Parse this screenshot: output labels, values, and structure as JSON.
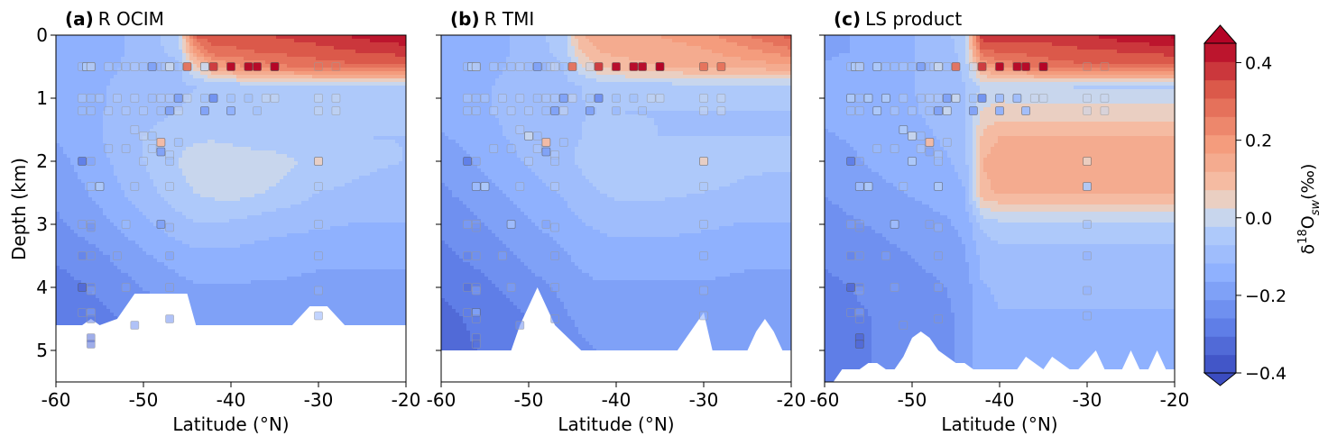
{
  "chart_data": [
    {
      "type": "heatmap",
      "panel_letter": "(a)",
      "title": "R OCIM",
      "xlabel": "Latitude (°N)",
      "ylabel": "Depth (km)",
      "xlim": [
        -60,
        -20
      ],
      "ylim": [
        5.5,
        0
      ],
      "xticks": [
        "-60",
        "-50",
        "-40",
        "-30",
        "-20"
      ],
      "yticks": [
        "0",
        "1",
        "2",
        "3",
        "4",
        "5"
      ],
      "field": {
        "lat": [
          -60,
          -55,
          -50,
          -46,
          -44,
          -42,
          -40,
          -35,
          -30,
          -25,
          -20
        ],
        "depth": [
          0,
          0.25,
          0.5,
          0.8,
          1.2,
          1.6,
          2.0,
          2.5,
          3.0,
          3.5,
          4.0,
          4.5,
          5.0,
          5.5
        ],
        "values": [
          [
            -0.15,
            -0.14,
            -0.1,
            -0.03,
            0.32,
            0.33,
            0.33,
            0.36,
            0.38,
            0.42,
            0.44
          ],
          [
            -0.15,
            -0.14,
            -0.1,
            -0.05,
            0.2,
            0.3,
            0.3,
            0.32,
            0.34,
            0.36,
            0.38
          ],
          [
            -0.14,
            -0.13,
            -0.1,
            -0.08,
            0.05,
            0.15,
            0.2,
            0.25,
            0.28,
            0.3,
            0.3
          ],
          [
            -0.13,
            -0.12,
            -0.1,
            -0.08,
            -0.07,
            -0.06,
            -0.05,
            -0.03,
            -0.02,
            -0.02,
            -0.02
          ],
          [
            -0.14,
            -0.12,
            -0.09,
            -0.07,
            -0.06,
            -0.06,
            -0.06,
            -0.06,
            -0.06,
            -0.06,
            -0.06
          ],
          [
            -0.16,
            -0.12,
            -0.07,
            -0.04,
            -0.03,
            -0.03,
            -0.04,
            -0.06,
            -0.07,
            -0.07,
            -0.07
          ],
          [
            -0.18,
            -0.13,
            -0.07,
            -0.02,
            0.0,
            0.01,
            0.01,
            0.0,
            -0.04,
            -0.06,
            -0.07
          ],
          [
            -0.2,
            -0.15,
            -0.09,
            -0.04,
            -0.02,
            -0.01,
            0.0,
            -0.03,
            -0.07,
            -0.08,
            -0.09
          ],
          [
            -0.22,
            -0.18,
            -0.13,
            -0.09,
            -0.07,
            -0.07,
            -0.08,
            -0.1,
            -0.11,
            -0.12,
            -0.12
          ],
          [
            -0.25,
            -0.22,
            -0.17,
            -0.14,
            -0.13,
            -0.13,
            -0.13,
            -0.14,
            -0.15,
            -0.15,
            -0.15
          ],
          [
            -0.28,
            -0.25,
            -0.21,
            -0.18,
            -0.17,
            -0.17,
            -0.17,
            -0.17,
            -0.18,
            -0.18,
            -0.18
          ],
          [
            -0.3,
            -0.27,
            -0.24,
            -0.21,
            -0.2,
            -0.2,
            -0.2,
            -0.2,
            -0.2,
            -0.2,
            -0.2
          ],
          [
            -0.3,
            -0.28,
            -0.25,
            -0.22,
            -0.21,
            -0.21,
            -0.21,
            -0.21,
            -0.21,
            -0.21,
            -0.21
          ],
          [
            -0.3,
            -0.28,
            -0.25,
            -0.22,
            -0.21,
            -0.21,
            -0.21,
            -0.21,
            -0.21,
            -0.21,
            -0.21
          ]
        ]
      },
      "bathymetry": {
        "lat": [
          -60,
          -57,
          -56,
          -55,
          -53,
          -51,
          -45,
          -44,
          -33,
          -31,
          -29,
          -27,
          -20
        ],
        "depth": [
          4.6,
          4.6,
          4.5,
          4.6,
          4.5,
          4.1,
          4.1,
          4.6,
          4.6,
          4.3,
          4.3,
          4.6,
          4.6
        ]
      }
    },
    {
      "type": "heatmap",
      "panel_letter": "(b)",
      "title": "R TMI",
      "xlabel": "Latitude (°N)",
      "ylabel": "",
      "xlim": [
        -60,
        -20
      ],
      "ylim": [
        5.5,
        0
      ],
      "xticks": [
        "-60",
        "-50",
        "-40",
        "-30",
        "-20"
      ],
      "yticks": [
        "",
        "",
        "",
        "",
        "",
        ""
      ],
      "field": {
        "lat": [
          -60,
          -55,
          -50,
          -46,
          -44,
          -42,
          -40,
          -35,
          -30,
          -25,
          -20
        ],
        "depth": [
          0,
          0.25,
          0.5,
          0.8,
          1.2,
          1.6,
          2.0,
          2.5,
          3.0,
          3.5,
          4.0,
          4.5,
          5.0,
          5.5
        ],
        "values": [
          [
            -0.15,
            -0.14,
            -0.1,
            -0.04,
            0.12,
            0.14,
            0.15,
            0.17,
            0.2,
            0.26,
            0.33
          ],
          [
            -0.15,
            -0.14,
            -0.1,
            -0.05,
            0.08,
            0.12,
            0.13,
            0.14,
            0.16,
            0.2,
            0.25
          ],
          [
            -0.14,
            -0.13,
            -0.1,
            -0.07,
            0.02,
            0.08,
            0.1,
            0.12,
            0.13,
            0.14,
            0.15
          ],
          [
            -0.13,
            -0.12,
            -0.1,
            -0.08,
            -0.07,
            -0.06,
            -0.05,
            -0.04,
            -0.03,
            -0.03,
            -0.03
          ],
          [
            -0.14,
            -0.12,
            -0.1,
            -0.08,
            -0.07,
            -0.07,
            -0.07,
            -0.07,
            -0.07,
            -0.07,
            -0.07
          ],
          [
            -0.17,
            -0.13,
            -0.1,
            -0.08,
            -0.07,
            -0.06,
            -0.06,
            -0.07,
            -0.07,
            -0.07,
            -0.07
          ],
          [
            -0.2,
            -0.15,
            -0.11,
            -0.08,
            -0.06,
            -0.04,
            -0.02,
            -0.02,
            -0.04,
            -0.06,
            -0.06
          ],
          [
            -0.22,
            -0.18,
            -0.14,
            -0.11,
            -0.09,
            -0.07,
            -0.06,
            -0.06,
            -0.07,
            -0.08,
            -0.09
          ],
          [
            -0.25,
            -0.21,
            -0.17,
            -0.14,
            -0.12,
            -0.11,
            -0.1,
            -0.1,
            -0.11,
            -0.12,
            -0.12
          ],
          [
            -0.27,
            -0.24,
            -0.2,
            -0.17,
            -0.15,
            -0.14,
            -0.14,
            -0.14,
            -0.14,
            -0.15,
            -0.15
          ],
          [
            -0.3,
            -0.27,
            -0.23,
            -0.2,
            -0.18,
            -0.17,
            -0.17,
            -0.17,
            -0.17,
            -0.18,
            -0.18
          ],
          [
            -0.32,
            -0.29,
            -0.26,
            -0.22,
            -0.2,
            -0.19,
            -0.19,
            -0.19,
            -0.2,
            -0.2,
            -0.2
          ],
          [
            -0.33,
            -0.3,
            -0.27,
            -0.24,
            -0.22,
            -0.21,
            -0.21,
            -0.21,
            -0.21,
            -0.21,
            -0.21
          ],
          [
            -0.33,
            -0.3,
            -0.27,
            -0.24,
            -0.22,
            -0.21,
            -0.21,
            -0.21,
            -0.21,
            -0.21,
            -0.21
          ]
        ]
      },
      "bathymetry": {
        "lat": [
          -60,
          -52,
          -51,
          -49,
          -47,
          -44,
          -43,
          -33,
          -31,
          -30,
          -29,
          -25,
          -24,
          -23,
          -22,
          -21,
          -20
        ],
        "depth": [
          5.0,
          5.0,
          4.6,
          4.0,
          4.6,
          5.0,
          5.0,
          5.0,
          4.6,
          4.4,
          5.0,
          5.0,
          4.7,
          4.5,
          4.7,
          5.0,
          5.0
        ]
      }
    },
    {
      "type": "heatmap",
      "panel_letter": "(c)",
      "title": "LS product",
      "xlabel": "Latitude (°N)",
      "ylabel": "",
      "xlim": [
        -60,
        -20
      ],
      "ylim": [
        5.5,
        0
      ],
      "xticks": [
        "-60",
        "-50",
        "-40",
        "-30",
        "-20"
      ],
      "yticks": [
        "",
        "",
        "",
        "",
        "",
        ""
      ],
      "field": {
        "lat": [
          -60,
          -55,
          -50,
          -46,
          -44,
          -42,
          -40,
          -35,
          -30,
          -25,
          -20
        ],
        "depth": [
          0,
          0.25,
          0.5,
          0.8,
          1.2,
          1.6,
          2.0,
          2.5,
          3.0,
          3.5,
          4.0,
          4.5,
          5.0,
          5.5
        ],
        "values": [
          [
            -0.17,
            -0.16,
            -0.12,
            -0.08,
            -0.04,
            0.4,
            0.38,
            0.38,
            0.4,
            0.44,
            0.46
          ],
          [
            -0.17,
            -0.16,
            -0.12,
            -0.09,
            -0.05,
            0.3,
            0.32,
            0.33,
            0.35,
            0.36,
            0.38
          ],
          [
            -0.16,
            -0.15,
            -0.12,
            -0.09,
            -0.06,
            0.15,
            0.22,
            0.28,
            0.3,
            0.3,
            0.3
          ],
          [
            -0.15,
            -0.14,
            -0.12,
            -0.09,
            -0.07,
            -0.02,
            0.0,
            -0.02,
            -0.03,
            -0.03,
            -0.03
          ],
          [
            -0.15,
            -0.14,
            -0.12,
            -0.1,
            -0.08,
            0.03,
            0.04,
            0.04,
            0.04,
            0.04,
            0.04
          ],
          [
            -0.17,
            -0.15,
            -0.13,
            -0.11,
            -0.09,
            0.08,
            0.12,
            0.12,
            0.12,
            0.12,
            0.12
          ],
          [
            -0.19,
            -0.16,
            -0.14,
            -0.12,
            -0.1,
            0.12,
            0.15,
            0.15,
            0.15,
            0.15,
            0.15
          ],
          [
            -0.21,
            -0.18,
            -0.16,
            -0.14,
            -0.12,
            0.1,
            0.13,
            0.13,
            0.13,
            0.13,
            0.13
          ],
          [
            -0.23,
            -0.21,
            -0.19,
            -0.17,
            -0.15,
            -0.06,
            -0.04,
            -0.04,
            -0.04,
            -0.04,
            -0.04
          ],
          [
            -0.25,
            -0.23,
            -0.21,
            -0.19,
            -0.17,
            -0.1,
            -0.09,
            -0.09,
            -0.09,
            -0.09,
            -0.09
          ],
          [
            -0.27,
            -0.25,
            -0.23,
            -0.21,
            -0.19,
            -0.12,
            -0.11,
            -0.11,
            -0.11,
            -0.11,
            -0.11
          ],
          [
            -0.28,
            -0.26,
            -0.24,
            -0.22,
            -0.2,
            -0.13,
            -0.12,
            -0.12,
            -0.12,
            -0.12,
            -0.12
          ],
          [
            -0.28,
            -0.26,
            -0.24,
            -0.22,
            -0.2,
            -0.13,
            -0.12,
            -0.12,
            -0.12,
            -0.12,
            -0.12
          ],
          [
            -0.28,
            -0.26,
            -0.24,
            -0.22,
            -0.2,
            -0.13,
            -0.12,
            -0.12,
            -0.12,
            -0.12,
            -0.12
          ]
        ]
      },
      "bathymetry": {
        "lat": [
          -60,
          -59,
          -58,
          -56,
          -55,
          -54,
          -53,
          -52,
          -51,
          -50,
          -49,
          -48,
          -47,
          -46,
          -45,
          -44,
          -43,
          -42,
          -40,
          -38,
          -37,
          -35,
          -34,
          -32,
          -31,
          -29,
          -28,
          -26,
          -25,
          -24,
          -23,
          -22,
          -21,
          -20
        ],
        "depth": [
          5.5,
          5.5,
          5.3,
          5.3,
          5.2,
          5.2,
          5.3,
          5.3,
          5.1,
          4.8,
          4.7,
          4.8,
          5.0,
          5.1,
          5.2,
          5.2,
          5.3,
          5.3,
          5.3,
          5.3,
          5.1,
          5.3,
          5.1,
          5.3,
          5.3,
          5.0,
          5.3,
          5.3,
          5.0,
          5.3,
          5.3,
          5.0,
          5.3,
          5.3
        ]
      }
    }
  ],
  "observations": {
    "lat": [
      -57,
      -56,
      -56.5,
      -56,
      -56,
      -54,
      -53,
      -52,
      -51,
      -50,
      -49,
      -48,
      -47.5,
      -47,
      -46,
      -45,
      -43,
      -42,
      -40,
      -38,
      -37,
      -35,
      -35,
      -30,
      -28,
      -57,
      -56,
      -55,
      -53,
      -51,
      -49,
      -48,
      -47,
      -46,
      -45,
      -43,
      -42,
      -40,
      -38,
      -36,
      -35,
      -30,
      -28,
      -57,
      -56,
      -54,
      -52,
      -50,
      -48,
      -47,
      -46,
      -43,
      -40,
      -37,
      -30,
      -28,
      -51,
      -50,
      -49,
      -48,
      -46,
      -54,
      -52,
      -49,
      -48,
      -47,
      -57,
      -56,
      -50,
      -47,
      -30,
      -56,
      -55,
      -51,
      -47,
      -30,
      -57,
      -56,
      -56,
      -52,
      -48,
      -47,
      -30,
      -57,
      -56,
      -53,
      -47,
      -30,
      -57,
      -56,
      -56,
      -52,
      -47,
      -30,
      -57,
      -56,
      -56,
      -51,
      -47,
      -30,
      -56,
      -56
    ],
    "depth": [
      0.5,
      0.5,
      0.5,
      0.5,
      0.5,
      0.5,
      0.5,
      0.5,
      0.5,
      0.5,
      0.5,
      0.5,
      0.5,
      0.5,
      0.5,
      0.5,
      0.5,
      0.5,
      0.5,
      0.5,
      0.5,
      0.5,
      0.5,
      0.5,
      0.5,
      1.0,
      1.0,
      1.0,
      1.0,
      1.0,
      1.0,
      1.0,
      1.0,
      1.0,
      1.0,
      1.0,
      1.0,
      1.0,
      1.0,
      1.0,
      1.0,
      1.0,
      1.0,
      1.2,
      1.2,
      1.2,
      1.2,
      1.2,
      1.2,
      1.2,
      1.2,
      1.2,
      1.2,
      1.2,
      1.2,
      1.2,
      1.5,
      1.6,
      1.6,
      1.7,
      1.7,
      1.8,
      1.8,
      1.8,
      1.85,
      1.9,
      2.0,
      2.0,
      2.0,
      2.0,
      2.0,
      2.4,
      2.4,
      2.4,
      2.4,
      2.4,
      3.0,
      3.0,
      3.05,
      3.0,
      3.0,
      3.05,
      3.0,
      3.5,
      3.5,
      3.5,
      3.5,
      3.5,
      4.0,
      4.0,
      4.05,
      4.0,
      4.0,
      4.05,
      4.4,
      4.4,
      4.5,
      4.6,
      4.5,
      4.45,
      4.8,
      4.9
    ],
    "value": [
      -0.1,
      -0.3,
      -0.05,
      0.0,
      -0.1,
      -0.05,
      -0.1,
      -0.08,
      -0.05,
      -0.1,
      -0.2,
      -0.15,
      -0.05,
      0.0,
      -0.1,
      0.3,
      0.0,
      0.4,
      0.45,
      0.45,
      0.5,
      0.5,
      0.45,
      0.3,
      0.3,
      -0.05,
      -0.1,
      -0.05,
      -0.05,
      -0.05,
      -0.1,
      -0.05,
      -0.05,
      -0.2,
      0.0,
      -0.1,
      -0.25,
      -0.1,
      -0.1,
      0.0,
      0.0,
      0.0,
      0.0,
      -0.1,
      -0.1,
      -0.05,
      -0.05,
      -0.05,
      -0.1,
      -0.2,
      0.0,
      -0.2,
      -0.15,
      -0.1,
      0.0,
      0.0,
      -0.05,
      0.0,
      -0.1,
      0.1,
      -0.1,
      -0.1,
      -0.1,
      -0.05,
      -0.2,
      -0.05,
      -0.3,
      -0.2,
      -0.05,
      -0.1,
      0.05,
      -0.1,
      -0.05,
      -0.1,
      -0.05,
      -0.05,
      -0.2,
      -0.2,
      -0.25,
      -0.1,
      -0.2,
      -0.15,
      -0.1,
      -0.3,
      -0.25,
      -0.2,
      -0.2,
      -0.15,
      -0.35,
      -0.3,
      -0.2,
      -0.2,
      -0.2,
      -0.15,
      -0.3,
      -0.2,
      -0.3,
      -0.25,
      -0.25,
      -0.15,
      -0.35,
      -0.35
    ]
  },
  "colorbar": {
    "label": "δ18Osw(‰)",
    "label_parts": {
      "delta": "δ",
      "sup": "18",
      "o": "O",
      "sub": "sw",
      "unit": "(‰)"
    },
    "vmin": -0.4,
    "vmax": 0.45,
    "levels": 18,
    "extend": "both",
    "ticks": [
      {
        "value": 0.4,
        "label": "0.4"
      },
      {
        "value": 0.2,
        "label": "0.2"
      },
      {
        "value": 0.0,
        "label": "0.0"
      },
      {
        "value": -0.2,
        "label": "−0.2"
      },
      {
        "value": -0.4,
        "label": "−0.4"
      }
    ],
    "colormap": "coolwarm",
    "colors": {
      "low": "#3b4cc0",
      "mid": "#dddddd",
      "high": "#b40426"
    }
  }
}
